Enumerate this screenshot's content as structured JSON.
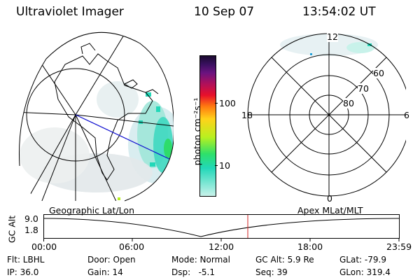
{
  "header": {
    "instrument": "Ultraviolet Imager",
    "date": "10 Sep 07",
    "time": "13:54:02 UT"
  },
  "colorbar": {
    "label": "photon cm⁻²s⁻¹",
    "ticks": [
      "100",
      "10"
    ],
    "colors": [
      "#1a0a2e",
      "#3a1060",
      "#6a1380",
      "#b0105a",
      "#e8102a",
      "#ff7a10",
      "#ffd21a",
      "#b8f020",
      "#2ee06a",
      "#22d8b8",
      "#c8f2ea"
    ]
  },
  "left_map": {
    "label": "Geographic Lat/Lon"
  },
  "polar_plot": {
    "label": "Apex MLat/MLT",
    "mlt_labels": {
      "top": "12",
      "right": "6",
      "bottom": "0",
      "left": "18"
    },
    "lat_labels": [
      "60",
      "70",
      "80"
    ]
  },
  "altitude_panel": {
    "ylabel": "GC Alt",
    "yticks": [
      "9.0",
      "1.8"
    ],
    "xticks": [
      "00:00",
      "06:00",
      "12:00",
      "18:00",
      "23:59"
    ]
  },
  "info": {
    "row1": {
      "flt": "Flt: LBHL",
      "door": "Door: Open",
      "mode": "Mode: Normal",
      "gcalt": "GC Alt: 5.9 Re",
      "glat": "GLat: -79.9"
    },
    "row2": {
      "ip": "IP: 36.0",
      "gain": "Gain: 14",
      "dsp": "Dsp:   -5.1",
      "seq": "Seq: 39",
      "glon": "GLon: 319.4"
    }
  }
}
